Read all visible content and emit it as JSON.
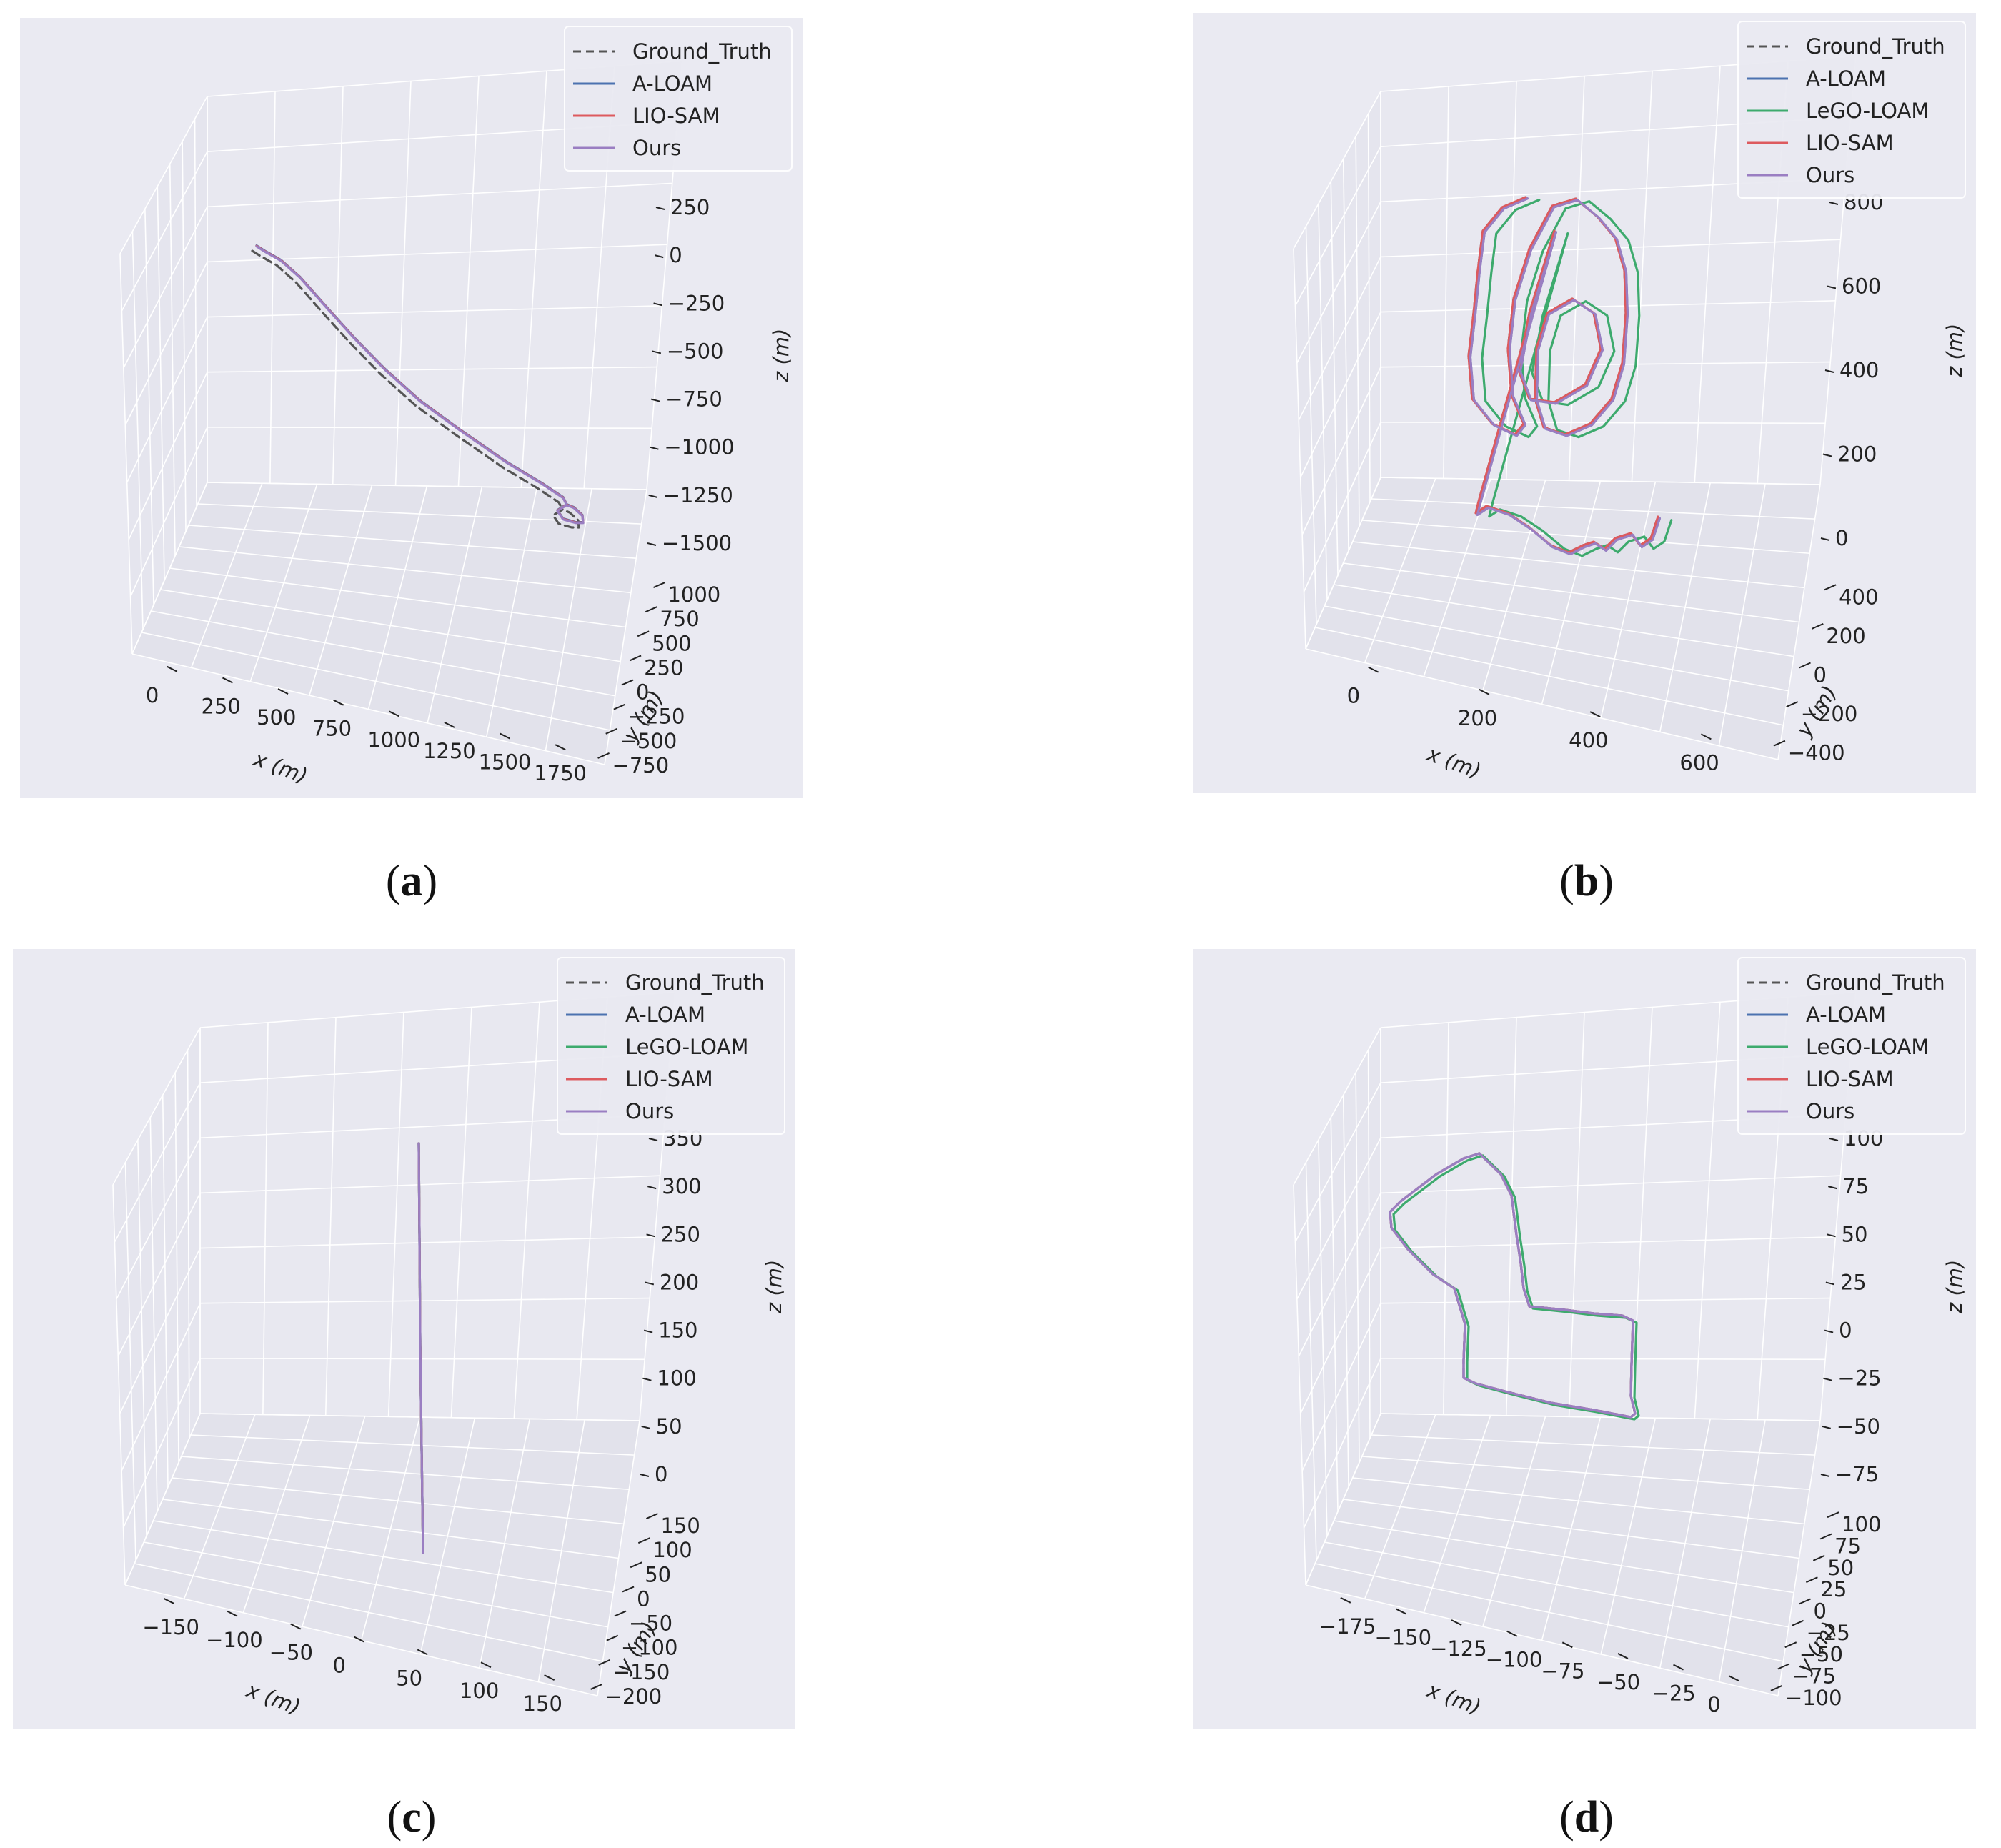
{
  "colors": {
    "Ground_Truth": "#555555",
    "A-LOAM": "#4c72b0",
    "LeGO-LOAM": "#3daa6d",
    "LIO-SAM": "#dd5a5e",
    "Ours": "#9a7ec2",
    "pane": "#eaeaf2",
    "grid": "#ffffff",
    "axis_text": "#222222"
  },
  "chart_data": [
    {
      "id": "a",
      "type": "line",
      "projection": "3d",
      "caption": "a",
      "legend_position": "top-right",
      "series": [
        {
          "name": "Ground_Truth",
          "style": "dashed"
        },
        {
          "name": "A-LOAM"
        },
        {
          "name": "LIO-SAM"
        },
        {
          "name": "Ours"
        }
      ],
      "xlabel": "x (m)",
      "ylabel": "y (m)",
      "zlabel": "z (m)",
      "xticks": [
        "0",
        "250",
        "500",
        "750",
        "1000",
        "1250",
        "1500",
        "1750"
      ],
      "yticks": [
        "−750",
        "−500",
        "−250",
        "0",
        "250",
        "500",
        "750",
        "1000"
      ],
      "zticks": [
        "−1500",
        "−1250",
        "−1000",
        "−750",
        "−500",
        "−250",
        "0",
        "250"
      ],
      "grid": true
    },
    {
      "id": "b",
      "type": "line",
      "projection": "3d",
      "caption": "b",
      "legend_position": "top-right",
      "series": [
        {
          "name": "Ground_Truth",
          "style": "dashed"
        },
        {
          "name": "A-LOAM"
        },
        {
          "name": "LeGO-LOAM"
        },
        {
          "name": "LIO-SAM"
        },
        {
          "name": "Ours"
        }
      ],
      "xlabel": "x (m)",
      "ylabel": "y (m)",
      "zlabel": "z (m)",
      "xticks": [
        "0",
        "200",
        "400",
        "600"
      ],
      "yticks": [
        "−400",
        "−200",
        "0",
        "200",
        "400"
      ],
      "zticks": [
        "0",
        "200",
        "400",
        "600",
        "800"
      ],
      "grid": true
    },
    {
      "id": "c",
      "type": "line",
      "projection": "3d",
      "caption": "c",
      "legend_position": "top-right",
      "series": [
        {
          "name": "Ground_Truth",
          "style": "dashed"
        },
        {
          "name": "A-LOAM"
        },
        {
          "name": "LeGO-LOAM"
        },
        {
          "name": "LIO-SAM"
        },
        {
          "name": "Ours"
        }
      ],
      "xlabel": "x (m)",
      "ylabel": "y (m)",
      "zlabel": "z (m)",
      "xticks": [
        "−150",
        "−100",
        "−50",
        "0",
        "50",
        "100",
        "150"
      ],
      "yticks": [
        "−200",
        "−150",
        "−100",
        "−50",
        "0",
        "50",
        "100",
        "150"
      ],
      "zticks": [
        "0",
        "50",
        "100",
        "150",
        "200",
        "250",
        "300",
        "350"
      ],
      "grid": true
    },
    {
      "id": "d",
      "type": "line",
      "projection": "3d",
      "caption": "d",
      "legend_position": "top-right",
      "series": [
        {
          "name": "Ground_Truth",
          "style": "dashed"
        },
        {
          "name": "A-LOAM"
        },
        {
          "name": "LeGO-LOAM"
        },
        {
          "name": "LIO-SAM"
        },
        {
          "name": "Ours"
        }
      ],
      "xlabel": "x (m)",
      "ylabel": "y (m)",
      "zlabel": "z (m)",
      "xticks": [
        "−175",
        "−150",
        "−125",
        "−100",
        "−75",
        "−50",
        "−25",
        "0"
      ],
      "yticks": [
        "−100",
        "−75",
        "−50",
        "−25",
        "0",
        "25",
        "50",
        "75",
        "100"
      ],
      "zticks": [
        "−75",
        "−50",
        "−25",
        "0",
        "25",
        "50",
        "75",
        "100"
      ],
      "grid": true
    }
  ]
}
